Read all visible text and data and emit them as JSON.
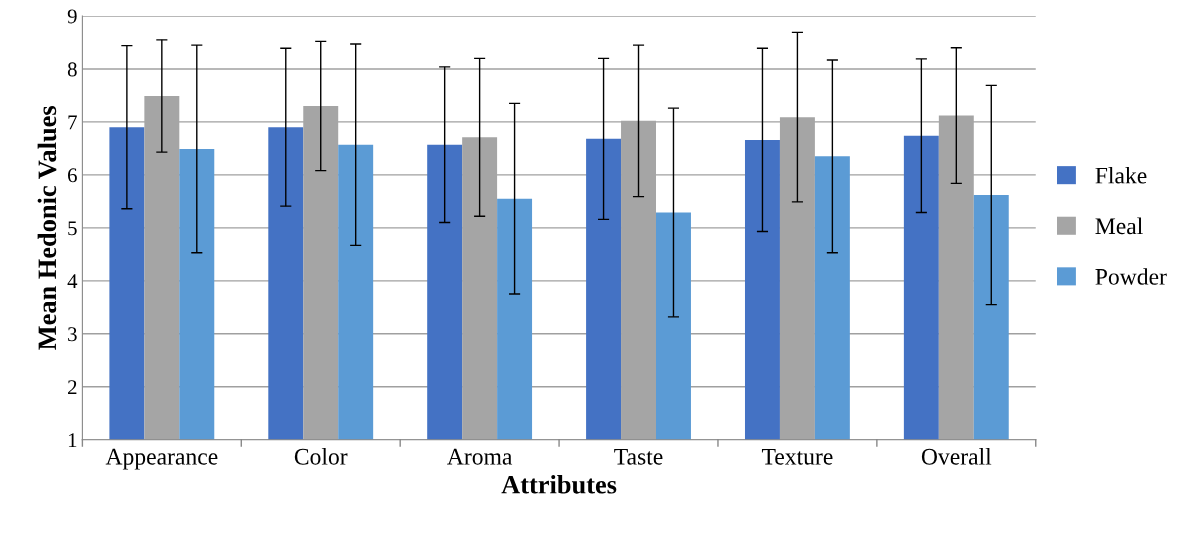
{
  "chart_data": {
    "type": "bar",
    "xlabel": "Attributes",
    "ylabel": "Mean Hedonic Values",
    "categories": [
      "Appearance",
      "Color",
      "Aroma",
      "Taste",
      "Texture",
      "Overall"
    ],
    "series": [
      {
        "name": "Flake",
        "color": "#4472c4",
        "values": [
          6.9,
          6.9,
          6.57,
          6.68,
          6.66,
          6.74
        ],
        "errors": [
          1.54,
          1.49,
          1.47,
          1.52,
          1.73,
          1.45
        ]
      },
      {
        "name": "Meal",
        "color": "#a5a5a5",
        "values": [
          7.49,
          7.3,
          6.71,
          7.02,
          7.09,
          7.12
        ],
        "errors": [
          1.06,
          1.22,
          1.49,
          1.43,
          1.6,
          1.28
        ]
      },
      {
        "name": "Powder",
        "color": "#5b9bd5",
        "values": [
          6.49,
          6.57,
          5.55,
          5.29,
          6.35,
          5.62
        ],
        "errors": [
          1.96,
          1.9,
          1.8,
          1.97,
          1.82,
          2.07
        ]
      }
    ],
    "ylim": [
      1,
      9
    ],
    "yticks": [
      1,
      2,
      3,
      4,
      5,
      6,
      7,
      8,
      9
    ],
    "grid": "y",
    "legend": "right"
  }
}
